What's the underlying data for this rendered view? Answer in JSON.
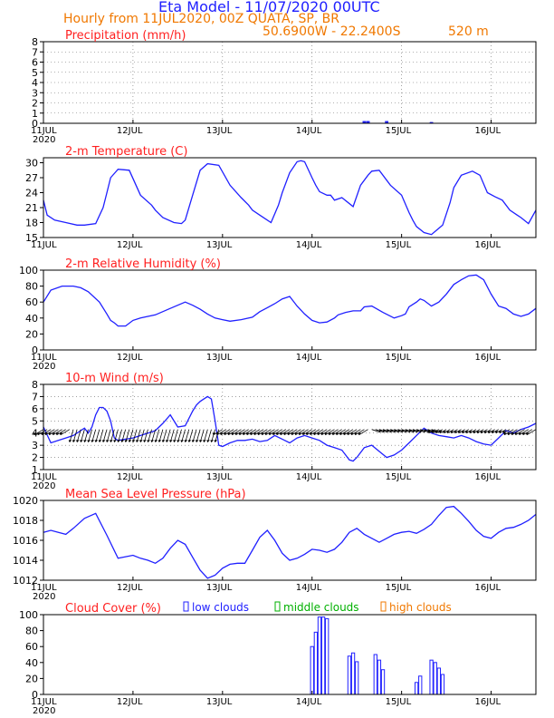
{
  "header": {
    "title": "Eta Model - 11/07/2020 00UTC",
    "subtitle": "Hourly from 11JUL2020, 00Z  QUATA, SP, BR",
    "coords": "50.6900W - 22.2400S",
    "elevation": "520  m"
  },
  "colors": {
    "line": "#2020ff",
    "title": "#ff2020",
    "middle": "#00b000",
    "high": "#f07800",
    "wind": "#000000"
  },
  "chart_data": [
    {
      "type": "bar",
      "title": "Precipitation (mm/h)",
      "x_unit": "hours since 11JUL2020 00Z",
      "xlim": [
        0,
        132
      ],
      "ylim": [
        0,
        8
      ],
      "yticks": [
        0,
        1,
        2,
        3,
        4,
        5,
        6,
        7,
        8
      ],
      "grid": "dotted",
      "xtick_labels": [
        "11JUL",
        "12JUL",
        "13JUL",
        "14JUL",
        "15JUL",
        "16JUL"
      ],
      "year_label": "2020",
      "x": [
        86,
        87,
        92,
        104
      ],
      "values": [
        0.2,
        0.2,
        0.2,
        0.1
      ]
    },
    {
      "type": "line",
      "title": "2-m Temperature (C)",
      "xlim": [
        0,
        132
      ],
      "ylim": [
        15,
        31
      ],
      "yticks": [
        15,
        18,
        21,
        24,
        27,
        30
      ],
      "xtick_labels": [
        "11JUL",
        "12JUL",
        "13JUL",
        "14JUL",
        "15JUL",
        "16JUL"
      ],
      "x": [
        0,
        1,
        3,
        6,
        9,
        11,
        14,
        16,
        17,
        18,
        20,
        23,
        26,
        29,
        30,
        32,
        35,
        37,
        38,
        40,
        42,
        44,
        47,
        50,
        53,
        55,
        56,
        58,
        61,
        63,
        64,
        66,
        68,
        69,
        70,
        72,
        73,
        74,
        76,
        77,
        78,
        80,
        83,
        85,
        87,
        88,
        90,
        93,
        96,
        98,
        99,
        100,
        102,
        104,
        107,
        109,
        110,
        112,
        115,
        117,
        119,
        121,
        123,
        125,
        127,
        128,
        130,
        132
      ],
      "values": [
        22.5,
        19.5,
        18.5,
        18,
        17.5,
        17.5,
        17.8,
        21,
        24,
        27,
        28.7,
        28.5,
        23.5,
        21.5,
        20.5,
        19,
        18,
        17.8,
        18.5,
        23.5,
        28.5,
        29.8,
        29.5,
        25.5,
        23,
        21.5,
        20.5,
        19.5,
        18,
        21.5,
        24,
        28,
        30.2,
        30.4,
        30.2,
        27,
        25.5,
        24.2,
        23.5,
        23.5,
        22.5,
        23,
        21.2,
        25.5,
        27.5,
        28.3,
        28.5,
        25.5,
        23.5,
        20,
        18.5,
        17.2,
        16,
        15.6,
        17.5,
        22,
        25,
        27.5,
        28.3,
        27.5,
        24,
        23.2,
        22.5,
        20.5,
        19.5,
        19,
        17.8,
        20.5
      ]
    },
    {
      "type": "line",
      "title": "2-m Relative Humidity (%)",
      "xlim": [
        0,
        132
      ],
      "ylim": [
        0,
        100
      ],
      "yticks": [
        0,
        20,
        40,
        60,
        80,
        100
      ],
      "xtick_labels": [
        "11JUL",
        "12JUL",
        "13JUL",
        "14JUL",
        "15JUL",
        "16JUL"
      ],
      "year_label": "2020",
      "x": [
        0,
        2,
        5,
        8,
        10,
        12,
        15,
        17,
        18,
        19,
        20,
        22,
        24,
        26,
        28,
        30,
        34,
        38,
        40,
        42,
        44,
        46,
        48,
        50,
        53,
        56,
        58,
        60,
        62,
        64,
        66,
        68,
        70,
        72,
        74,
        76,
        78,
        79,
        81,
        83,
        85,
        86,
        88,
        91,
        94,
        96,
        97,
        98,
        100,
        101,
        102,
        104,
        106,
        108,
        110,
        112,
        114,
        116,
        118,
        120,
        122,
        124,
        126,
        128,
        130,
        132
      ],
      "values": [
        60,
        75,
        80,
        80,
        78,
        73,
        60,
        45,
        37,
        34,
        30,
        30,
        37,
        40,
        42,
        44,
        52,
        60,
        56,
        51,
        45,
        40,
        38,
        36,
        38,
        41,
        48,
        53,
        58,
        64,
        67,
        55,
        45,
        37,
        34,
        35,
        40,
        44,
        47,
        49,
        49,
        54,
        55,
        47,
        40,
        43,
        45,
        54,
        60,
        64,
        62,
        55,
        60,
        70,
        82,
        88,
        93,
        94,
        88,
        70,
        55,
        52,
        45,
        42,
        45,
        52
      ]
    },
    {
      "type": "line",
      "title": "10-m Wind (m/s)",
      "xlim": [
        0,
        132
      ],
      "ylim": [
        1,
        8
      ],
      "yticks": [
        1,
        2,
        3,
        4,
        5,
        6,
        7,
        8
      ],
      "grid": "dotted",
      "xtick_labels": [
        "11JUL",
        "12JUL",
        "13JUL",
        "14JUL",
        "15JUL",
        "16JUL"
      ],
      "year_label": "2020",
      "x": [
        0,
        2,
        4,
        6,
        8,
        10,
        11,
        12,
        13,
        14,
        15,
        16,
        17,
        18,
        19,
        20,
        22,
        24,
        26,
        28,
        30,
        32,
        34,
        36,
        38,
        40,
        41,
        42,
        43,
        44,
        45,
        46,
        47,
        48,
        50,
        52,
        54,
        56,
        58,
        60,
        62,
        64,
        66,
        68,
        70,
        72,
        74,
        76,
        78,
        80,
        81,
        82,
        83,
        84,
        86,
        88,
        90,
        92,
        94,
        96,
        98,
        100,
        102,
        104,
        106,
        108,
        110,
        112,
        114,
        116,
        118,
        120,
        122,
        124,
        126,
        128,
        130,
        132
      ],
      "values": [
        4.5,
        3.2,
        3.4,
        3.6,
        3.8,
        4.2,
        4.4,
        4.0,
        4.5,
        5.5,
        6.1,
        6.1,
        5.8,
        5.0,
        3.6,
        3.4,
        3.5,
        3.6,
        3.8,
        4.0,
        4.2,
        4.8,
        5.5,
        4.5,
        4.6,
        5.8,
        6.3,
        6.6,
        6.8,
        7.0,
        6.8,
        5.0,
        3.0,
        2.9,
        3.2,
        3.4,
        3.4,
        3.5,
        3.3,
        3.4,
        3.8,
        3.5,
        3.2,
        3.6,
        3.8,
        3.6,
        3.4,
        3.0,
        2.8,
        2.6,
        2.2,
        1.8,
        1.7,
        2.0,
        2.8,
        3.0,
        2.5,
        2.0,
        2.2,
        2.6,
        3.2,
        3.8,
        4.4,
        4.0,
        3.8,
        3.7,
        3.6,
        3.8,
        3.6,
        3.3,
        3.1,
        3.0,
        3.6,
        4.2,
        4.0,
        4.3,
        4.5,
        4.8
      ]
    },
    {
      "type": "line",
      "title": "Mean Sea Level Pressure (hPa)",
      "xlim": [
        0,
        132
      ],
      "ylim": [
        1012,
        1020
      ],
      "yticks": [
        1012,
        1014,
        1016,
        1018,
        1020
      ],
      "xtick_labels": [
        "11JUL",
        "12JUL",
        "13JUL",
        "14JUL",
        "15JUL",
        "16JUL"
      ],
      "year_label": "2020",
      "x": [
        0,
        2,
        4,
        6,
        8,
        11,
        14,
        17,
        20,
        24,
        26,
        28,
        30,
        32,
        34,
        36,
        38,
        40,
        42,
        44,
        46,
        48,
        50,
        52,
        54,
        56,
        58,
        60,
        62,
        64,
        66,
        68,
        70,
        72,
        74,
        76,
        78,
        80,
        82,
        84,
        86,
        88,
        90,
        92,
        94,
        96,
        98,
        100,
        102,
        104,
        106,
        108,
        110,
        112,
        114,
        116,
        118,
        120,
        122,
        124,
        126,
        128,
        130,
        132
      ],
      "values": [
        1016.8,
        1017,
        1016.8,
        1016.6,
        1017.2,
        1018.2,
        1018.7,
        1016.5,
        1014.2,
        1014.5,
        1014.2,
        1014,
        1013.7,
        1014.2,
        1015.2,
        1016,
        1015.6,
        1014.3,
        1013,
        1012.2,
        1012.5,
        1013.2,
        1013.6,
        1013.7,
        1013.7,
        1015,
        1016.3,
        1017,
        1016,
        1014.7,
        1014,
        1014.2,
        1014.6,
        1015.1,
        1015,
        1014.8,
        1015.1,
        1015.8,
        1016.8,
        1017.2,
        1016.6,
        1016.2,
        1015.8,
        1016.2,
        1016.6,
        1016.8,
        1016.9,
        1016.7,
        1017.1,
        1017.6,
        1018.5,
        1019.3,
        1019.4,
        1018.7,
        1017.9,
        1017,
        1016.4,
        1016.2,
        1016.8,
        1017.2,
        1017.3,
        1017.6,
        1018,
        1018.6
      ]
    },
    {
      "type": "bar",
      "title": "Cloud Cover (%)",
      "xlim": [
        0,
        132
      ],
      "ylim": [
        0,
        100
      ],
      "yticks": [
        0,
        20,
        40,
        60,
        80,
        100
      ],
      "xtick_labels": [
        "11JUL",
        "12JUL",
        "13JUL",
        "14JUL",
        "15JUL",
        "16JUL"
      ],
      "year_label": "2020",
      "legend": {
        "low": "low clouds",
        "middle": "middle clouds",
        "high": "high clouds"
      },
      "series": [
        {
          "name": "low clouds",
          "x": [
            72,
            73,
            74,
            75,
            76,
            82,
            83,
            84,
            89,
            90,
            91,
            100,
            101,
            104,
            105,
            106,
            107
          ],
          "values": [
            60,
            78,
            97,
            97,
            95,
            48,
            52,
            41,
            50,
            43,
            31,
            15,
            23,
            43,
            40,
            33,
            25
          ]
        }
      ]
    }
  ]
}
